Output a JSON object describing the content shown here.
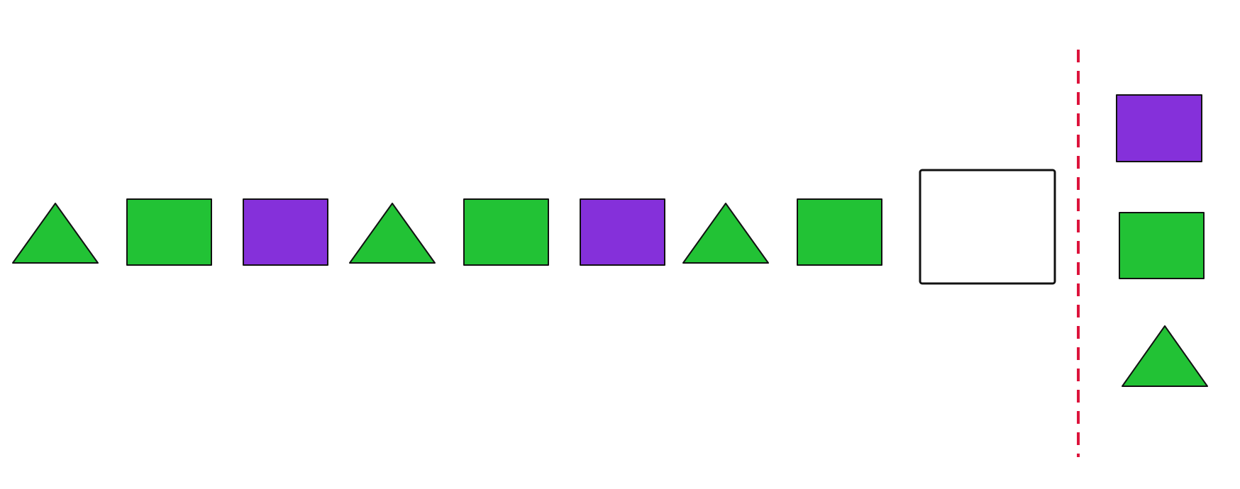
{
  "puzzle": {
    "colors": {
      "green": "#22c235",
      "purple": "#8530da",
      "divider": "#dc143c",
      "outline": "#111111"
    },
    "sequence": [
      {
        "shape": "triangle",
        "color": "green"
      },
      {
        "shape": "square",
        "color": "green"
      },
      {
        "shape": "square",
        "color": "purple"
      },
      {
        "shape": "triangle",
        "color": "green"
      },
      {
        "shape": "square",
        "color": "green"
      },
      {
        "shape": "square",
        "color": "purple"
      },
      {
        "shape": "triangle",
        "color": "green"
      },
      {
        "shape": "square",
        "color": "green"
      },
      {
        "shape": "blank",
        "color": "none"
      }
    ],
    "options": [
      {
        "shape": "square",
        "color": "purple"
      },
      {
        "shape": "square",
        "color": "green"
      },
      {
        "shape": "triangle",
        "color": "green"
      }
    ]
  }
}
